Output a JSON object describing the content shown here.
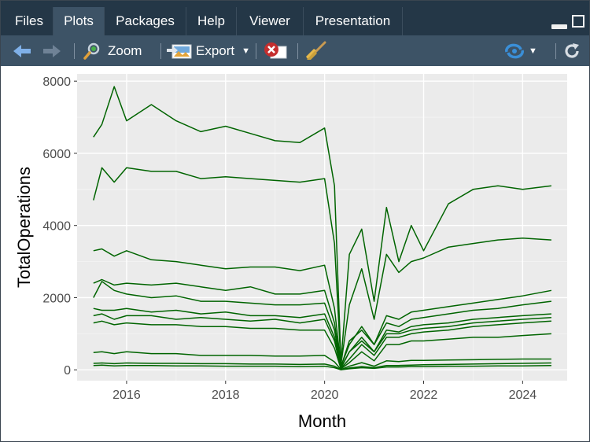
{
  "tabs": [
    {
      "label": "Files",
      "active": false
    },
    {
      "label": "Plots",
      "active": true
    },
    {
      "label": "Packages",
      "active": false
    },
    {
      "label": "Help",
      "active": false
    },
    {
      "label": "Viewer",
      "active": false
    },
    {
      "label": "Presentation",
      "active": false
    }
  ],
  "toolbar": {
    "zoom_label": "Zoom",
    "export_label": "Export",
    "icons": [
      "back-arrow-icon",
      "forward-arrow-icon",
      "zoom-icon",
      "export-icon",
      "remove-plot-icon",
      "broom-icon",
      "publish-icon",
      "refresh-icon"
    ]
  },
  "colors": {
    "tabbar": "#243747",
    "toolbar": "#3d5366",
    "panel": "#ebebeb",
    "line": "#006400",
    "accent_blue": "#3a8fd8"
  },
  "chart_data": {
    "type": "line",
    "xlabel": "Month",
    "ylabel": "TotalOperations",
    "xlim": [
      2015.0,
      2024.9
    ],
    "ylim": [
      -300,
      8200
    ],
    "x_ticks": [
      2016,
      2018,
      2020,
      2022,
      2024
    ],
    "y_ticks": [
      0,
      2000,
      4000,
      6000,
      8000
    ],
    "grid": true,
    "legend": "none",
    "x": [
      2015.33,
      2015.5,
      2015.75,
      2016.0,
      2016.5,
      2017.0,
      2017.5,
      2018.0,
      2018.5,
      2019.0,
      2019.5,
      2020.0,
      2020.2,
      2020.33,
      2020.5,
      2020.75,
      2021.0,
      2021.25,
      2021.5,
      2021.75,
      2022.0,
      2022.5,
      2023.0,
      2023.5,
      2024.0,
      2024.58
    ],
    "series": [
      {
        "values": [
          6450,
          6800,
          7850,
          6900,
          7350,
          6900,
          6600,
          6750,
          6550,
          6350,
          6300,
          6700,
          5100,
          200,
          3200,
          3900,
          1900,
          4500,
          3000,
          4000,
          3300,
          4600,
          5000,
          5100,
          5000,
          5100
        ]
      },
      {
        "values": [
          4700,
          5600,
          5200,
          5600,
          5500,
          5500,
          5300,
          5350,
          5300,
          5250,
          5200,
          5300,
          3500,
          150,
          1800,
          2800,
          1400,
          3200,
          2700,
          3000,
          3100,
          3400,
          3500,
          3600,
          3650,
          3600
        ]
      },
      {
        "values": [
          3300,
          3350,
          3150,
          3300,
          3050,
          3000,
          2900,
          2800,
          2850,
          2850,
          2750,
          2900,
          1700,
          100,
          700,
          1200,
          700,
          1500,
          1400,
          1600,
          1650,
          1750,
          1850,
          1950,
          2050,
          2200
        ]
      },
      {
        "values": [
          2400,
          2500,
          2350,
          2400,
          2350,
          2400,
          2300,
          2200,
          2300,
          2100,
          2100,
          2200,
          1300,
          80,
          800,
          1100,
          700,
          1300,
          1200,
          1400,
          1450,
          1550,
          1650,
          1700,
          1800,
          1900
        ]
      },
      {
        "values": [
          2000,
          2450,
          2200,
          2100,
          2000,
          2050,
          1900,
          1900,
          1850,
          1800,
          1800,
          1850,
          1100,
          60,
          500,
          900,
          500,
          1100,
          1050,
          1200,
          1250,
          1300,
          1400,
          1450,
          1500,
          1550
        ]
      },
      {
        "values": [
          1700,
          1650,
          1650,
          1700,
          1600,
          1650,
          1550,
          1600,
          1500,
          1500,
          1450,
          1550,
          900,
          50,
          500,
          800,
          500,
          1000,
          1000,
          1100,
          1150,
          1200,
          1300,
          1350,
          1400,
          1450
        ]
      },
      {
        "values": [
          1500,
          1550,
          1400,
          1500,
          1500,
          1400,
          1450,
          1400,
          1350,
          1400,
          1300,
          1400,
          800,
          40,
          300,
          700,
          400,
          900,
          900,
          1000,
          1050,
          1100,
          1200,
          1250,
          1300,
          1350
        ]
      },
      {
        "values": [
          1300,
          1350,
          1250,
          1300,
          1250,
          1250,
          1200,
          1200,
          1150,
          1150,
          1100,
          1100,
          600,
          30,
          200,
          500,
          250,
          700,
          700,
          800,
          800,
          850,
          900,
          900,
          950,
          1000
        ]
      },
      {
        "values": [
          480,
          500,
          450,
          500,
          450,
          450,
          400,
          400,
          400,
          380,
          380,
          400,
          220,
          10,
          100,
          200,
          100,
          250,
          230,
          260,
          260,
          270,
          280,
          290,
          300,
          300
        ]
      },
      {
        "values": [
          180,
          190,
          170,
          190,
          180,
          180,
          170,
          170,
          160,
          160,
          150,
          160,
          100,
          5,
          50,
          90,
          60,
          120,
          120,
          130,
          140,
          150,
          160,
          170,
          180,
          190
        ]
      },
      {
        "values": [
          120,
          130,
          110,
          120,
          120,
          110,
          110,
          100,
          100,
          100,
          90,
          100,
          60,
          2,
          30,
          60,
          40,
          80,
          80,
          90,
          90,
          100,
          100,
          110,
          110,
          120
        ]
      }
    ]
  }
}
